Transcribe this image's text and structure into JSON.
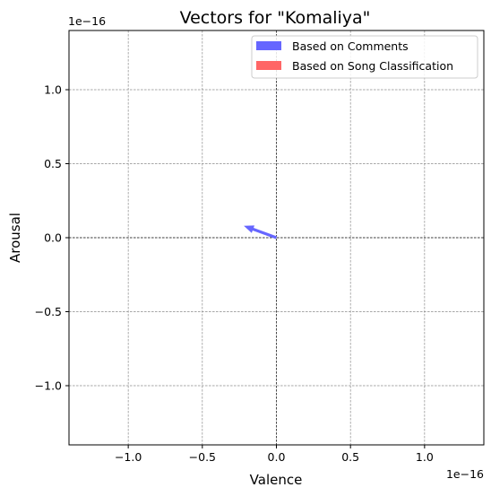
{
  "chart_data": {
    "type": "quiver",
    "title": "Vectors for \"Komaliya\"",
    "xlabel": "Valence",
    "ylabel": "Arousal",
    "x_offset_text": "1e−16",
    "y_offset_text": "1e−16",
    "xlim": [
      -1.4e-16,
      1.4e-16
    ],
    "ylim": [
      -1.4e-16,
      1.4e-16
    ],
    "xticks": [
      -1e-16,
      -5e-17,
      0,
      5e-17,
      1e-16
    ],
    "yticks": [
      -1e-16,
      -5e-17,
      0,
      5e-17,
      1e-16
    ],
    "xtick_labels": [
      "−1.0",
      "−0.5",
      "0.0",
      "0.5",
      "1.0"
    ],
    "ytick_labels": [
      "−1.0",
      "−0.5",
      "0.0",
      "0.5",
      "1.0"
    ],
    "grid": true,
    "legend_position": "top-right",
    "series": [
      {
        "name": "Based on Comments",
        "color": "#6666ff",
        "vectors": [
          {
            "x0": 0,
            "y0": 0,
            "dx": -2.2e-17,
            "dy": 8e-18
          }
        ]
      },
      {
        "name": "Based on Song Classification",
        "color": "#ff6666",
        "vectors": [
          {
            "x0": 0,
            "y0": 0,
            "dx": 0,
            "dy": 0
          }
        ]
      }
    ]
  }
}
